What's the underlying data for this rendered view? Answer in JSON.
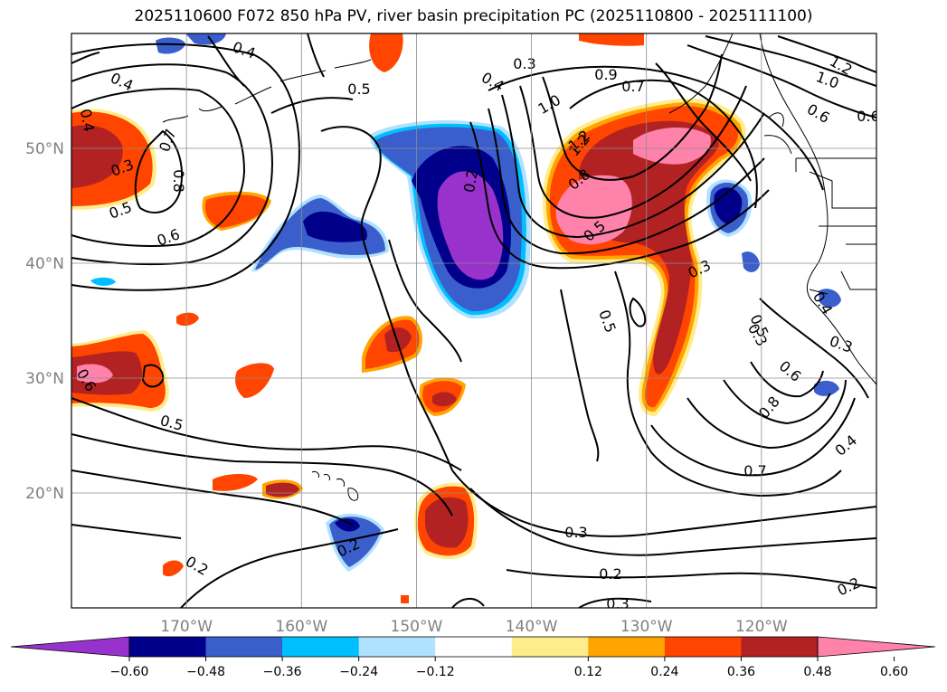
{
  "chart_data": {
    "type": "heatmap",
    "title": "2025110600 F072 850 hPa PV, river basin precipitation PC (2025110800 - 2025111100)",
    "map": {
      "lon_range": [
        -180,
        -110
      ],
      "lat_range": [
        10,
        60
      ],
      "gridlines": true,
      "lon_ticks": [
        {
          "lon": -170,
          "label": "170°W"
        },
        {
          "lon": -160,
          "label": "160°W"
        },
        {
          "lon": -150,
          "label": "150°W"
        },
        {
          "lon": -140,
          "label": "140°W"
        },
        {
          "lon": -130,
          "label": "130°W"
        },
        {
          "lon": -120,
          "label": "120°W"
        }
      ],
      "lat_ticks": [
        {
          "lat": 50,
          "label": "50°N"
        },
        {
          "lat": 40,
          "label": "40°N"
        },
        {
          "lat": 30,
          "label": "30°N"
        },
        {
          "lat": 20,
          "label": "20°N"
        }
      ]
    },
    "colorbar": {
      "extend": "both",
      "levels": [
        -0.72,
        -0.6,
        -0.48,
        -0.36,
        -0.24,
        -0.12,
        0.12,
        0.24,
        0.36,
        0.48,
        0.6,
        0.72
      ],
      "colors": [
        "#9932cc",
        "#00008b",
        "#3a5fcd",
        "#00bfff",
        "#b0e2ff",
        "#ffffff",
        "#ffec8b",
        "#ffa500",
        "#ff4500",
        "#b22222",
        "#ff82ab"
      ],
      "tick_labels": [
        "−0.60",
        "−0.48",
        "−0.36",
        "−0.24",
        "−0.12",
        "0.12",
        "0.24",
        "0.36",
        "0.48",
        "0.60"
      ],
      "tick_values": [
        -0.6,
        -0.48,
        -0.36,
        -0.24,
        -0.12,
        0.12,
        0.24,
        0.36,
        0.48,
        0.6
      ]
    },
    "shaded_features": [
      {
        "name": "Gulf of Alaska trough dipole (negative)",
        "lon": -145,
        "lat": 42,
        "peak": -0.72
      },
      {
        "name": "Pacific Northwest precipitation maximum (positive)",
        "lon": -130,
        "lat": 46,
        "peak": 0.72
      },
      {
        "name": "Subtropical positive center",
        "lon": -147,
        "lat": 17,
        "peak": 0.55
      },
      {
        "name": "Western subtropical positive center",
        "lon": -175,
        "lat": 31,
        "peak": 0.65
      },
      {
        "name": "Dateline high-latitude positive center",
        "lon": -178,
        "lat": 49,
        "peak": 0.5
      }
    ],
    "contour_labels": [
      "0.4",
      "0.4",
      "0.5",
      "0.3",
      "0.4",
      "1.0",
      "1.2",
      "0.9",
      "0.7",
      "1.2",
      "1.0",
      "0.6",
      "0.6",
      "0.3",
      "0.7",
      "0.8",
      "0.5",
      "0.6",
      "0.4",
      "0.2",
      "1.2",
      "0.8",
      "0.5",
      "0.3",
      "0.5",
      "0.3",
      "0.6",
      "0.5",
      "0.3",
      "0.4",
      "0.5",
      "0.6",
      "0.8",
      "0.7",
      "0.4",
      "0.2",
      "0.3",
      "0.2",
      "0.3",
      "0.2",
      "0.2"
    ]
  }
}
